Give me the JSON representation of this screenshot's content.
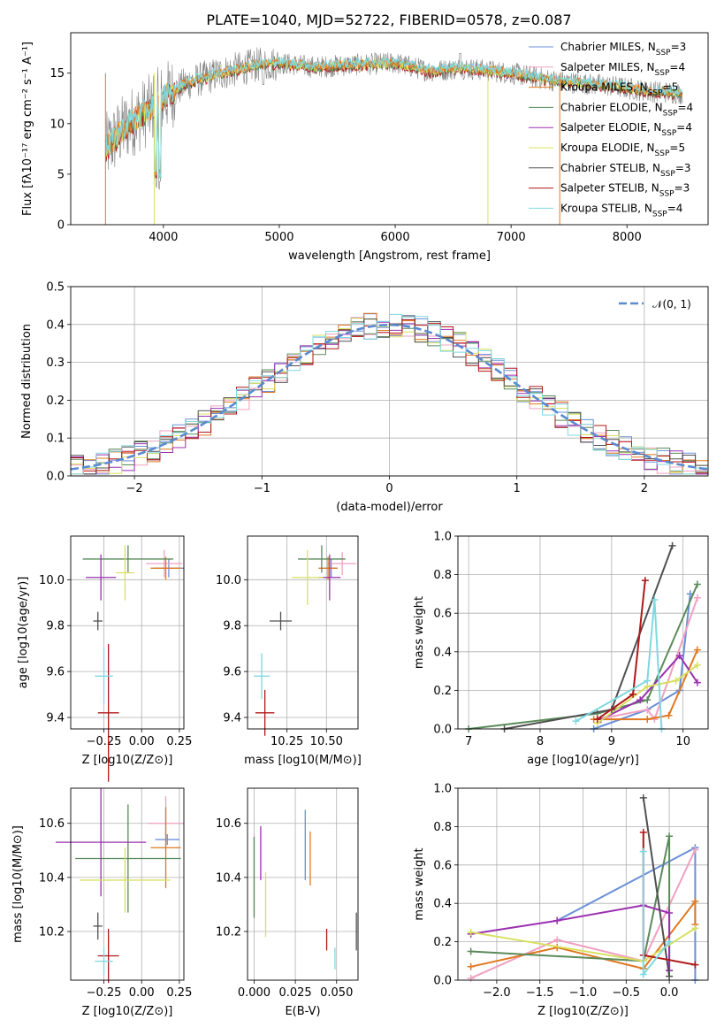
{
  "title": "PLATE=1040, MJD=52722, FIBERID=0578, z=0.087",
  "colors": {
    "Chabrier MILES": "#6a8fd8",
    "Salpeter MILES": "#f0a0c0",
    "Kroupa MILES": "#e07820",
    "Chabrier ELODIE": "#5a8a5a",
    "Salpeter ELODIE": "#9a30b0",
    "Kroupa ELODIE": "#d8e060",
    "Chabrier STELIB": "#505050",
    "Salpeter STELIB": "#b01818",
    "Kroupa STELIB": "#80d8e0",
    "gauss": "#5a8ad0"
  },
  "chart_data": [
    {
      "id": "spectrum",
      "type": "line",
      "title": "PLATE=1040, MJD=52722, FIBERID=0578, z=0.087",
      "xlabel": "wavelength [Angstrom, rest frame]",
      "ylabel": "Flux [fλ10⁻¹⁷ erg cm⁻² s⁻¹ A⁻¹]",
      "xlim": [
        3200,
        8700
      ],
      "ylim": [
        0,
        19
      ],
      "xticks": [
        4000,
        5000,
        6000,
        7000,
        8000
      ],
      "yticks": [
        0,
        5,
        10,
        15
      ],
      "legend_position": "upper-right",
      "legend": [
        "Chabrier MILES, N_SSP=3",
        "Salpeter MILES, N_SSP=4",
        "Kroupa MILES, N_SSP=5",
        "Chabrier ELODIE, N_SSP=4",
        "Salpeter ELODIE, N_SSP=4",
        "Kroupa ELODIE, N_SSP=5",
        "Chabrier STELIB, N_SSP=3",
        "Salpeter STELIB, N_SSP=3",
        "Kroupa STELIB, N_SSP=4"
      ],
      "continuum": {
        "x": [
          3500,
          3700,
          3900,
          4000,
          4200,
          4500,
          4800,
          5000,
          5300,
          5600,
          6000,
          6300,
          6600,
          7000,
          7400,
          7800,
          8200,
          8500
        ],
        "y": [
          7.5,
          10.0,
          11.5,
          12.5,
          14.0,
          15.0,
          15.8,
          16.0,
          15.6,
          15.8,
          16.0,
          15.2,
          15.5,
          15.0,
          14.2,
          13.8,
          13.2,
          13.0
        ]
      },
      "spikes": [
        {
          "x": 3500,
          "y": 0.0,
          "series": "Kroupa MILES"
        },
        {
          "x": 3920,
          "y": 0.0,
          "series": "Kroupa ELODIE"
        },
        {
          "x": 6800,
          "y": 0.0,
          "series": "Kroupa ELODIE"
        },
        {
          "x": 7420,
          "y": 0.0,
          "series": "Kroupa MILES"
        }
      ]
    },
    {
      "id": "residuals",
      "type": "step",
      "xlabel": "(data-model)/error",
      "ylabel": "Normed distribution",
      "xlim": [
        -2.5,
        2.5
      ],
      "ylim": [
        0,
        0.5
      ],
      "xticks": [
        -2,
        -1,
        0,
        1,
        2
      ],
      "yticks": [
        0.0,
        0.1,
        0.2,
        0.3,
        0.4,
        0.5
      ],
      "legend_position": "upper-right",
      "legend": [
        "𝒩(0, 1)"
      ],
      "bin_width": 0.1
    },
    {
      "id": "age-vs-z",
      "type": "errorbar",
      "xlabel": "Z [log10(Z/Z⊙)]",
      "ylabel": "age [log10(age/yr)]",
      "xlim": [
        -0.47,
        0.28
      ],
      "ylim": [
        9.35,
        10.19
      ],
      "xticks": [
        -0.25,
        0.0,
        0.25
      ],
      "yticks": [
        9.4,
        9.6,
        9.8,
        10.0
      ],
      "points": [
        {
          "series": "Chabrier MILES",
          "x": 0.18,
          "y": 10.05,
          "xerr": 0.1,
          "yerr": 0.04
        },
        {
          "series": "Salpeter MILES",
          "x": 0.15,
          "y": 10.07,
          "xerr": 0.12,
          "yerr": 0.06
        },
        {
          "series": "Kroupa MILES",
          "x": 0.16,
          "y": 10.05,
          "xerr": 0.1,
          "yerr": 0.05
        },
        {
          "series": "Chabrier ELODIE",
          "x": -0.09,
          "y": 10.09,
          "xerr": 0.3,
          "yerr": 0.06
        },
        {
          "series": "Salpeter ELODIE",
          "x": -0.27,
          "y": 10.01,
          "xerr": 0.1,
          "yerr": 0.1
        },
        {
          "series": "Kroupa ELODIE",
          "x": -0.11,
          "y": 10.03,
          "xerr": 0.06,
          "yerr": 0.12
        },
        {
          "series": "Chabrier STELIB",
          "x": -0.29,
          "y": 9.82,
          "xerr": 0.03,
          "yerr": 0.04
        },
        {
          "series": "Salpeter STELIB",
          "x": -0.22,
          "y": 9.42,
          "xerr": 0.07,
          "yerr": 0.3
        },
        {
          "series": "Kroupa STELIB",
          "x": -0.25,
          "y": 9.58,
          "xerr": 0.06,
          "yerr": 0.12
        }
      ]
    },
    {
      "id": "age-vs-mass",
      "type": "errorbar",
      "xlabel": "mass [log10(M/M⊙)]",
      "ylabel": "",
      "xlim": [
        10.0,
        10.7
      ],
      "ylim": [
        9.35,
        10.19
      ],
      "xticks": [
        10.25,
        10.5
      ],
      "yticks": [
        9.4,
        9.6,
        9.8,
        10.0
      ],
      "points": [
        {
          "series": "Chabrier MILES",
          "x": 10.53,
          "y": 10.05,
          "xerr": 0.04,
          "yerr": 0.04
        },
        {
          "series": "Salpeter MILES",
          "x": 10.6,
          "y": 10.07,
          "xerr": 0.09,
          "yerr": 0.05
        },
        {
          "series": "Kroupa MILES",
          "x": 10.51,
          "y": 10.05,
          "xerr": 0.06,
          "yerr": 0.05
        },
        {
          "series": "Chabrier ELODIE",
          "x": 10.47,
          "y": 10.09,
          "xerr": 0.15,
          "yerr": 0.06
        },
        {
          "series": "Salpeter ELODIE",
          "x": 10.52,
          "y": 10.01,
          "xerr": 0.07,
          "yerr": 0.1
        },
        {
          "series": "Kroupa ELODIE",
          "x": 10.38,
          "y": 10.01,
          "xerr": 0.1,
          "yerr": 0.12
        },
        {
          "series": "Chabrier STELIB",
          "x": 10.21,
          "y": 9.82,
          "xerr": 0.07,
          "yerr": 0.04
        },
        {
          "series": "Salpeter STELIB",
          "x": 10.11,
          "y": 9.42,
          "xerr": 0.06,
          "yerr": 0.1
        },
        {
          "series": "Kroupa STELIB",
          "x": 10.09,
          "y": 9.58,
          "xerr": 0.05,
          "yerr": 0.1
        }
      ]
    },
    {
      "id": "weight-vs-age",
      "type": "line",
      "xlabel": "age [log10(age/yr)]",
      "ylabel": "mass weight",
      "xlim": [
        6.85,
        10.35
      ],
      "ylim": [
        0,
        1.0
      ],
      "xticks": [
        7,
        8,
        9,
        10
      ],
      "yticks": [
        0.0,
        0.2,
        0.4,
        0.6,
        0.8,
        1.0
      ],
      "series": [
        {
          "name": "Chabrier MILES",
          "points": [
            [
              8.75,
              0.0
            ],
            [
              9.5,
              0.1
            ],
            [
              9.95,
              0.2
            ],
            [
              10.1,
              0.7
            ]
          ]
        },
        {
          "name": "Salpeter MILES",
          "points": [
            [
              8.8,
              0.05
            ],
            [
              9.5,
              0.1
            ],
            [
              9.6,
              0.05
            ],
            [
              10.2,
              0.68
            ]
          ]
        },
        {
          "name": "Kroupa MILES",
          "points": [
            [
              8.75,
              0.05
            ],
            [
              9.5,
              0.05
            ],
            [
              9.8,
              0.07
            ],
            [
              10.2,
              0.41
            ]
          ]
        },
        {
          "name": "Chabrier ELODIE",
          "points": [
            [
              7.0,
              0.0
            ],
            [
              8.8,
              0.08
            ],
            [
              9.5,
              0.15
            ],
            [
              10.2,
              0.75
            ]
          ]
        },
        {
          "name": "Salpeter ELODIE",
          "points": [
            [
              8.85,
              0.05
            ],
            [
              9.4,
              0.15
            ],
            [
              9.95,
              0.38
            ],
            [
              10.2,
              0.24
            ]
          ]
        },
        {
          "name": "Kroupa ELODIE",
          "points": [
            [
              8.8,
              0.03
            ],
            [
              9.5,
              0.22
            ],
            [
              9.9,
              0.25
            ],
            [
              10.2,
              0.33
            ]
          ]
        },
        {
          "name": "Chabrier STELIB",
          "points": [
            [
              7.5,
              0.0
            ],
            [
              9.0,
              0.1
            ],
            [
              9.85,
              0.95
            ]
          ]
        },
        {
          "name": "Salpeter STELIB",
          "points": [
            [
              8.8,
              0.05
            ],
            [
              9.3,
              0.18
            ],
            [
              9.47,
              0.77
            ]
          ]
        },
        {
          "name": "Kroupa STELIB",
          "points": [
            [
              8.5,
              0.04
            ],
            [
              9.5,
              0.25
            ],
            [
              9.6,
              0.67
            ],
            [
              9.7,
              0.0
            ]
          ]
        }
      ]
    },
    {
      "id": "mass-vs-z",
      "type": "errorbar",
      "xlabel": "Z [log10(Z/Z⊙)]",
      "ylabel": "mass [log10(M/M⊙)]",
      "xlim": [
        -0.47,
        0.28
      ],
      "ylim": [
        10.02,
        10.73
      ],
      "xticks": [
        -0.25,
        0.0,
        0.25
      ],
      "yticks": [
        10.2,
        10.4,
        10.6
      ],
      "points": [
        {
          "series": "Chabrier MILES",
          "x": 0.17,
          "y": 10.54,
          "xerr": 0.08,
          "yerr": 0.02
        },
        {
          "series": "Salpeter MILES",
          "x": 0.16,
          "y": 10.6,
          "xerr": 0.12,
          "yerr": 0.1
        },
        {
          "series": "Kroupa MILES",
          "x": 0.16,
          "y": 10.51,
          "xerr": 0.1,
          "yerr": 0.15
        },
        {
          "series": "Chabrier ELODIE",
          "x": -0.09,
          "y": 10.47,
          "xerr": 0.35,
          "yerr": 0.2
        },
        {
          "series": "Salpeter ELODIE",
          "x": -0.27,
          "y": 10.53,
          "xerr": 0.3,
          "yerr": 0.2
        },
        {
          "series": "Kroupa ELODIE",
          "x": -0.11,
          "y": 10.39,
          "xerr": 0.3,
          "yerr": 0.12
        },
        {
          "series": "Chabrier STELIB",
          "x": -0.29,
          "y": 10.22,
          "xerr": 0.03,
          "yerr": 0.05
        },
        {
          "series": "Salpeter STELIB",
          "x": -0.22,
          "y": 10.11,
          "xerr": 0.07,
          "yerr": 0.1
        },
        {
          "series": "Kroupa STELIB",
          "x": -0.25,
          "y": 10.09,
          "xerr": 0.06,
          "yerr": 0.05
        }
      ]
    },
    {
      "id": "mass-vs-ebv",
      "type": "errorbar",
      "xlabel": "E(B-V)",
      "ylabel": "",
      "xlim": [
        -0.004,
        0.063
      ],
      "ylim": [
        10.02,
        10.73
      ],
      "xticks": [
        0.0,
        0.025,
        0.05
      ],
      "yticks": [
        10.2,
        10.4,
        10.6
      ],
      "points": [
        {
          "series": "Chabrier MILES",
          "x": 0.031,
          "y": 10.52,
          "xerr": 0,
          "yerr": 0.13
        },
        {
          "series": "Salpeter MILES",
          "x": 0.0,
          "y": 10.41,
          "xerr": 0,
          "yerr": 0.15
        },
        {
          "series": "Kroupa MILES",
          "x": 0.034,
          "y": 10.47,
          "xerr": 0,
          "yerr": 0.1
        },
        {
          "series": "Chabrier ELODIE",
          "x": 0.0,
          "y": 10.4,
          "xerr": 0,
          "yerr": 0.15
        },
        {
          "series": "Salpeter ELODIE",
          "x": 0.004,
          "y": 10.49,
          "xerr": 0,
          "yerr": 0.1
        },
        {
          "series": "Kroupa ELODIE",
          "x": 0.007,
          "y": 10.3,
          "xerr": 0,
          "yerr": 0.12
        },
        {
          "series": "Chabrier STELIB",
          "x": 0.062,
          "y": 10.2,
          "xerr": 0,
          "yerr": 0.07
        },
        {
          "series": "Salpeter STELIB",
          "x": 0.044,
          "y": 10.17,
          "xerr": 0,
          "yerr": 0.04
        },
        {
          "series": "Kroupa STELIB",
          "x": 0.049,
          "y": 10.1,
          "xerr": 0,
          "yerr": 0.04
        }
      ]
    },
    {
      "id": "weight-vs-z",
      "type": "line",
      "xlabel": "Z [log10(Z/Z⊙)]",
      "ylabel": "mass weight",
      "xlim": [
        -2.45,
        0.45
      ],
      "ylim": [
        0,
        1.0
      ],
      "xticks": [
        -2.0,
        -1.5,
        -1.0,
        -0.5,
        0.0
      ],
      "yticks": [
        0.0,
        0.2,
        0.4,
        0.6,
        0.8,
        1.0
      ],
      "series": [
        {
          "name": "Chabrier MILES",
          "points": [
            [
              -1.3,
              0.31
            ],
            [
              0.3,
              0.69
            ],
            [
              0.3,
              0.0
            ]
          ]
        },
        {
          "name": "Salpeter MILES",
          "points": [
            [
              -2.3,
              0.01
            ],
            [
              -1.3,
              0.21
            ],
            [
              -0.3,
              0.1
            ],
            [
              0.3,
              0.68
            ]
          ]
        },
        {
          "name": "Kroupa MILES",
          "points": [
            [
              -2.3,
              0.07
            ],
            [
              -1.3,
              0.17
            ],
            [
              -0.3,
              0.06
            ],
            [
              0.3,
              0.41
            ],
            [
              0.3,
              0.29
            ]
          ]
        },
        {
          "name": "Chabrier ELODIE",
          "points": [
            [
              -2.3,
              0.15
            ],
            [
              -0.3,
              0.1
            ],
            [
              0.0,
              0.75
            ],
            [
              0.0,
              0.05
            ]
          ]
        },
        {
          "name": "Salpeter ELODIE",
          "points": [
            [
              -2.3,
              0.24
            ],
            [
              -1.3,
              0.31
            ],
            [
              -0.3,
              0.39
            ],
            [
              0.0,
              0.35
            ],
            [
              0.0,
              0.05
            ]
          ]
        },
        {
          "name": "Kroupa ELODIE",
          "points": [
            [
              -2.3,
              0.25
            ],
            [
              -0.3,
              0.1
            ],
            [
              0.3,
              0.27
            ]
          ]
        },
        {
          "name": "Chabrier STELIB",
          "points": [
            [
              -0.3,
              0.95
            ],
            [
              0.0,
              0.02
            ]
          ]
        },
        {
          "name": "Salpeter STELIB",
          "points": [
            [
              -0.3,
              0.77
            ],
            [
              -0.3,
              0.13
            ],
            [
              0.3,
              0.08
            ]
          ]
        },
        {
          "name": "Kroupa STELIB",
          "points": [
            [
              -0.3,
              0.67
            ],
            [
              -0.3,
              0.03
            ],
            [
              0.0,
              0.2
            ]
          ]
        }
      ]
    }
  ]
}
